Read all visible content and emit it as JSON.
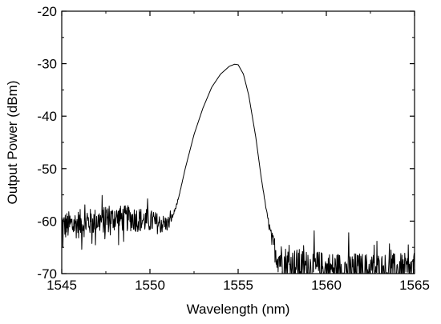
{
  "chart_data": {
    "type": "line",
    "title": "",
    "xlabel": "Wavelength (nm)",
    "ylabel": "Output Power (dBm)",
    "xlim": [
      1545,
      1565
    ],
    "ylim": [
      -70,
      -20
    ],
    "xticks": [
      1545,
      1550,
      1555,
      1560,
      1565
    ],
    "xtick_labels": [
      "1545",
      "1550",
      "1555",
      "1560",
      "1565"
    ],
    "yticks": [
      -70,
      -60,
      -50,
      -40,
      -30,
      -20
    ],
    "ytick_labels": [
      "-70",
      "-60",
      "-50",
      "-40",
      "-30",
      "-20"
    ],
    "grid": false,
    "line_color": "#000000",
    "series": [
      {
        "x": [
          1545.0,
          1546.0,
          1547.0,
          1548.0,
          1549.0,
          1550.0,
          1550.5,
          1551.0,
          1551.3,
          1551.6,
          1552.0,
          1552.5,
          1553.0,
          1553.5,
          1554.0,
          1554.5,
          1554.8,
          1555.0,
          1555.3,
          1555.6,
          1556.0,
          1556.3,
          1556.6,
          1556.9,
          1557.2,
          1557.6,
          1558.0,
          1559.0,
          1560.0,
          1561.0,
          1562.0,
          1563.0,
          1564.0,
          1565.0
        ],
        "y": [
          -61,
          -60.5,
          -60,
          -59.5,
          -59.5,
          -60,
          -60.5,
          -60.5,
          -59,
          -56,
          -50,
          -43.5,
          -38.5,
          -34.5,
          -32,
          -30.5,
          -30.1,
          -30.2,
          -32,
          -36,
          -44,
          -51.5,
          -58,
          -63.5,
          -66.5,
          -68,
          -68.5,
          -69,
          -69.3,
          -69.4,
          -69.5,
          -69.5,
          -69.6,
          -69.6
        ],
        "noise_amplitude_db": [
          5.5,
          5.5,
          5,
          5,
          5,
          4.5,
          4,
          3,
          1,
          0.3,
          0,
          0,
          0,
          0,
          0,
          0,
          0,
          0,
          0,
          0,
          0,
          0,
          0.5,
          3,
          6,
          7,
          7,
          7,
          7,
          7,
          7,
          7,
          7,
          7
        ]
      }
    ]
  }
}
